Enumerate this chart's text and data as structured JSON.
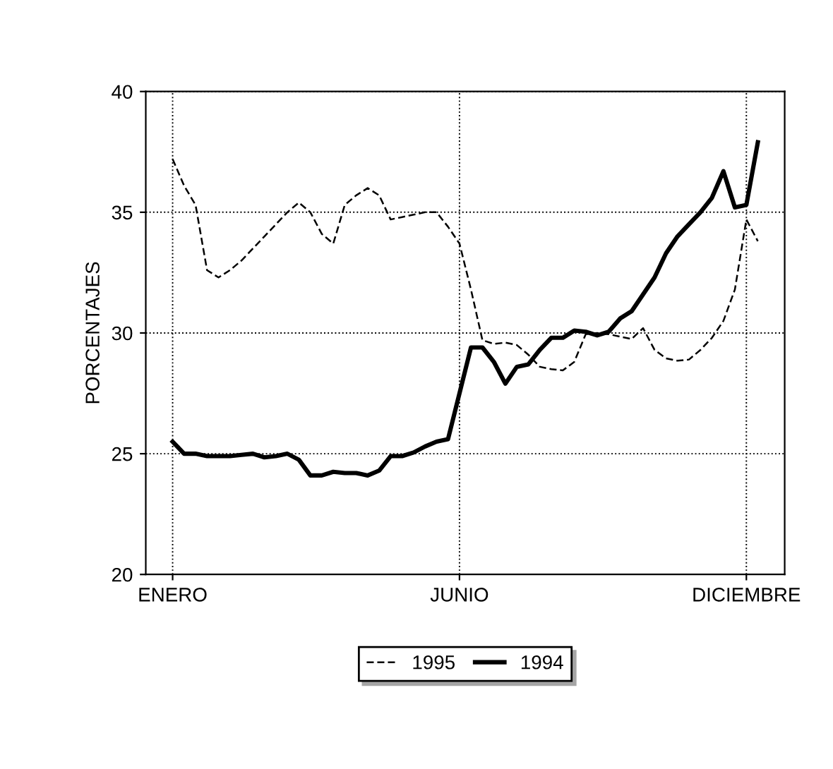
{
  "chart_data": {
    "type": "line",
    "ylabel": "PORCENTAJES",
    "categories": [
      "ENERO",
      null,
      null,
      null,
      null,
      null,
      null,
      null,
      null,
      null,
      null,
      null,
      null,
      null,
      null,
      null,
      null,
      null,
      null,
      null,
      null,
      null,
      null,
      null,
      null,
      "JUNIO",
      null,
      null,
      null,
      null,
      null,
      null,
      null,
      null,
      null,
      null,
      null,
      null,
      null,
      null,
      null,
      null,
      null,
      null,
      null,
      null,
      null,
      null,
      null,
      null,
      "DICIEMBRE",
      null
    ],
    "ylim": [
      20,
      40
    ],
    "yticks": [
      20,
      25,
      30,
      35,
      40
    ],
    "grid": true,
    "legend": "bottom",
    "series": [
      {
        "name": "1995",
        "color": "#000000",
        "line_style": "dashed",
        "values": [
          37.2,
          36.1,
          35.3,
          32.6,
          32.3,
          32.6,
          33.0,
          33.5,
          34.0,
          34.5,
          35.0,
          35.4,
          35.0,
          34.1,
          33.7,
          35.3,
          35.7,
          36.0,
          35.7,
          34.7,
          34.8,
          34.9,
          35.0,
          35.0,
          34.4,
          33.7,
          31.8,
          29.7,
          29.55,
          29.6,
          29.5,
          29.1,
          28.6,
          28.5,
          28.45,
          28.8,
          29.95,
          30.0,
          29.95,
          29.85,
          29.75,
          30.2,
          29.3,
          28.95,
          28.85,
          28.9,
          29.3,
          29.8,
          30.5,
          31.8,
          34.7,
          33.8
        ]
      },
      {
        "name": "1994",
        "color": "#000000",
        "line_style": "solid",
        "values": [
          25.5,
          25.0,
          25.0,
          24.9,
          24.9,
          24.9,
          24.95,
          25.0,
          24.85,
          24.9,
          25.0,
          24.75,
          24.1,
          24.1,
          24.25,
          24.2,
          24.2,
          24.1,
          24.3,
          24.9,
          24.9,
          25.05,
          25.3,
          25.5,
          25.6,
          27.5,
          29.4,
          29.4,
          28.8,
          27.9,
          28.6,
          28.7,
          29.3,
          29.8,
          29.8,
          30.1,
          30.05,
          29.9,
          30.05,
          30.6,
          30.9,
          31.6,
          32.3,
          33.3,
          34.0,
          34.5,
          35.0,
          35.6,
          36.7,
          35.2,
          35.3,
          37.9
        ]
      }
    ]
  }
}
